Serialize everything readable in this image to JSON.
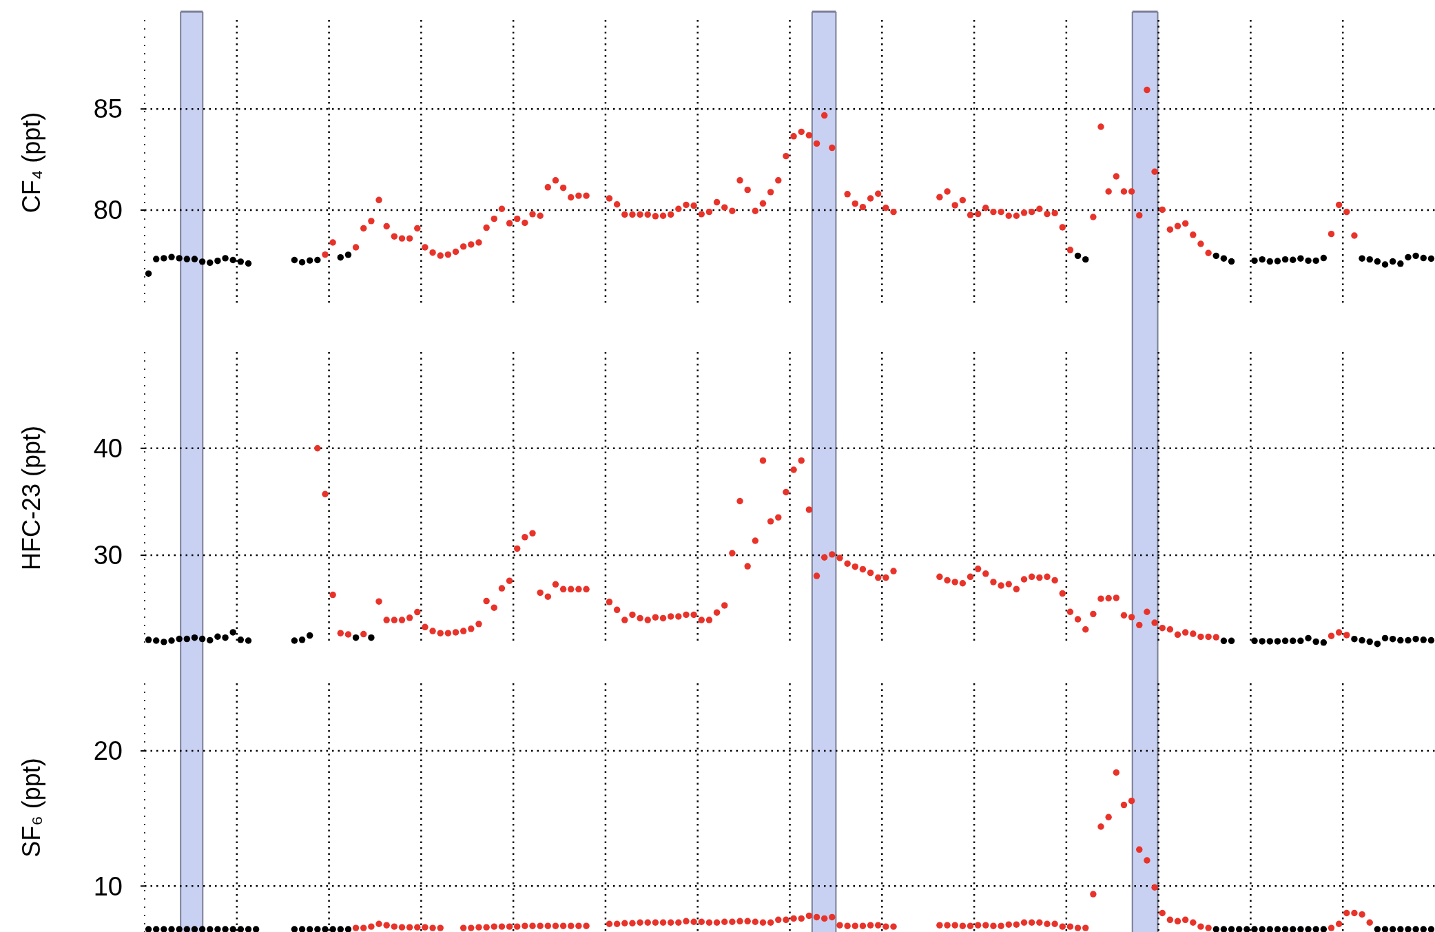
{
  "chart_data": [
    {
      "type": "scatter",
      "ylabel": "CF₄ (ppt)",
      "ylim": [
        75.3,
        89.4
      ],
      "yticks": [
        80,
        85
      ],
      "grid": true,
      "marker": "circle",
      "categories": [
        null,
        null,
        null,
        null,
        null,
        null,
        null,
        null,
        null,
        null,
        null,
        null,
        null,
        null,
        null,
        null,
        null,
        null,
        null,
        null,
        null,
        null,
        null,
        null,
        null,
        null,
        null,
        null,
        null,
        null,
        null,
        null,
        null,
        null,
        null,
        null,
        null,
        null,
        null,
        null,
        null,
        null,
        null,
        null,
        null,
        null,
        null,
        null,
        null,
        null,
        null,
        null,
        null,
        null,
        null,
        null,
        null,
        null,
        null,
        null,
        null,
        null,
        null,
        null,
        null,
        null,
        null,
        null,
        null,
        null,
        null,
        null,
        null,
        null,
        null,
        null,
        null,
        null,
        null,
        null,
        null,
        null,
        null,
        null,
        null,
        null,
        null,
        null,
        null,
        null,
        null,
        null,
        null,
        null,
        null,
        null,
        null,
        null,
        null,
        null,
        null,
        null,
        null,
        null,
        null,
        null,
        null,
        null,
        null,
        null,
        null,
        null,
        null,
        null,
        null,
        null,
        null,
        null,
        null,
        null,
        null,
        null,
        null,
        null,
        null,
        null,
        null,
        null,
        null,
        null,
        null,
        null,
        null,
        null,
        null,
        null,
        null,
        null,
        null,
        null,
        null,
        null,
        null,
        null,
        null,
        null,
        null,
        null,
        null,
        null,
        null,
        null,
        null,
        null,
        null,
        null,
        null,
        null,
        null,
        null,
        null,
        null,
        null,
        null,
        null,
        null,
        null,
        null
      ],
      "series": [
        {
          "color": "#000000",
          "values": [
            76.86,
            77.58,
            77.62,
            77.68,
            77.62,
            77.58,
            77.58,
            77.45,
            77.4,
            77.49,
            77.62,
            77.53,
            77.45,
            77.36,
            null,
            null,
            null,
            null,
            null,
            77.53,
            77.42,
            77.51,
            77.53,
            null,
            null,
            77.66,
            77.79,
            null,
            null,
            null,
            null,
            null,
            null,
            null,
            null,
            null,
            null,
            null,
            null,
            null,
            null,
            null,
            null,
            null,
            null,
            null,
            null,
            null,
            null,
            null,
            null,
            null,
            null,
            null,
            null,
            null,
            null,
            null,
            null,
            null,
            null,
            null,
            null,
            null,
            null,
            null,
            null,
            null,
            null,
            null,
            null,
            null,
            null,
            null,
            null,
            null,
            null,
            null,
            null,
            null,
            null,
            null,
            null,
            null,
            null,
            null,
            null,
            null,
            null,
            null,
            null,
            null,
            null,
            null,
            null,
            null,
            null,
            null,
            null,
            null,
            null,
            null,
            null,
            null,
            null,
            null,
            null,
            null,
            null,
            null,
            null,
            null,
            null,
            null,
            null,
            null,
            null,
            null,
            null,
            null,
            null,
            77.74,
            77.56,
            null,
            null,
            null,
            null,
            null,
            null,
            null,
            null,
            null,
            null,
            null,
            null,
            null,
            null,
            null,
            null,
            77.74,
            77.61,
            77.46,
            null,
            null,
            77.5,
            77.56,
            77.46,
            77.48,
            77.56,
            77.54,
            77.61,
            77.5,
            77.5,
            77.63,
            null,
            null,
            null,
            null,
            77.61,
            77.56,
            77.46,
            77.31,
            77.46,
            77.35,
            77.67,
            77.74,
            77.63,
            77.6
          ]
        },
        {
          "color": "#e8332a",
          "values": [
            null,
            null,
            null,
            null,
            null,
            null,
            null,
            null,
            null,
            null,
            null,
            null,
            null,
            null,
            null,
            null,
            null,
            null,
            null,
            null,
            null,
            null,
            null,
            77.8,
            78.4,
            null,
            null,
            78.16,
            79.1,
            79.46,
            80.5,
            79.2,
            78.7,
            78.6,
            78.6,
            79.1,
            78.16,
            77.9,
            77.75,
            77.8,
            77.94,
            78.2,
            78.3,
            78.4,
            79.13,
            79.57,
            80.06,
            79.35,
            79.57,
            79.37,
            79.8,
            79.72,
            81.13,
            81.47,
            81.1,
            80.63,
            80.71,
            80.71,
            null,
            null,
            80.58,
            80.28,
            79.78,
            79.78,
            79.78,
            79.78,
            79.7,
            79.72,
            79.78,
            80.06,
            80.26,
            80.22,
            79.8,
            79.91,
            80.39,
            80.13,
            79.96,
            81.47,
            81.0,
            79.96,
            80.33,
            80.89,
            81.47,
            82.67,
            83.65,
            83.87,
            83.7,
            83.29,
            84.68,
            83.08,
            null,
            80.79,
            80.32,
            80.15,
            80.58,
            80.81,
            80.11,
            79.91,
            null,
            null,
            null,
            null,
            null,
            80.64,
            80.92,
            80.24,
            80.49,
            79.76,
            79.81,
            80.11,
            79.91,
            79.91,
            79.72,
            79.72,
            79.87,
            79.91,
            80.06,
            79.81,
            79.85,
            79.15,
            78.03,
            null,
            null,
            79.66,
            84.12,
            80.92,
            81.67,
            80.92,
            80.92,
            79.74,
            85.94,
            81.9,
            80.02,
            79.04,
            79.21,
            79.34,
            78.78,
            78.33,
            77.88,
            null,
            null,
            null,
            null,
            null,
            null,
            null,
            null,
            null,
            null,
            null,
            null,
            null,
            null,
            null,
            78.82,
            80.26,
            79.91,
            78.74,
            null,
            null,
            null,
            null,
            null,
            null,
            null,
            null,
            null,
            null
          ]
        }
      ]
    },
    {
      "type": "scatter",
      "ylabel": "HFC-23 (ppt)",
      "ylim": [
        21.7,
        49
      ],
      "yticks": [
        30,
        40
      ],
      "grid": true,
      "marker": "circle",
      "categories": [
        null,
        null,
        null,
        null,
        null,
        null,
        null,
        null,
        null,
        null,
        null,
        null,
        null,
        null,
        null,
        null,
        null,
        null,
        null,
        null,
        null,
        null,
        null,
        null,
        null,
        null,
        null,
        null,
        null,
        null,
        null,
        null,
        null,
        null,
        null,
        null,
        null,
        null,
        null,
        null,
        null,
        null,
        null,
        null,
        null,
        null,
        null,
        null,
        null,
        null,
        null,
        null,
        null,
        null,
        null,
        null,
        null,
        null,
        null,
        null,
        null,
        null,
        null,
        null,
        null,
        null,
        null,
        null,
        null,
        null,
        null,
        null,
        null,
        null,
        null,
        null,
        null,
        null,
        null,
        null,
        null,
        null,
        null,
        null,
        null,
        null,
        null,
        null,
        null,
        null,
        null,
        null,
        null,
        null,
        null,
        null,
        null,
        null,
        null,
        null,
        null,
        null,
        null,
        null,
        null,
        null,
        null,
        null,
        null,
        null,
        null,
        null,
        null,
        null,
        null,
        null,
        null,
        null,
        null,
        null,
        null,
        null,
        null,
        null,
        null,
        null,
        null,
        null,
        null,
        null,
        null,
        null,
        null,
        null,
        null,
        null,
        null,
        null,
        null,
        null,
        null,
        null,
        null,
        null,
        null,
        null,
        null,
        null,
        null,
        null,
        null,
        null,
        null,
        null,
        null,
        null,
        null,
        null,
        null,
        null,
        null,
        null,
        null,
        null,
        null,
        null,
        null,
        null
      ],
      "series": [
        {
          "color": "#000000",
          "values": [
            22.1,
            22.02,
            21.9,
            22.02,
            22.18,
            22.18,
            22.3,
            22.18,
            22.06,
            22.39,
            22.3,
            22.8,
            22.1,
            22.02,
            null,
            null,
            null,
            null,
            null,
            22.02,
            22.1,
            22.5,
            null,
            null,
            null,
            null,
            null,
            22.3,
            null,
            22.3,
            null,
            null,
            null,
            null,
            null,
            null,
            null,
            null,
            null,
            null,
            null,
            null,
            null,
            null,
            null,
            null,
            null,
            null,
            null,
            null,
            null,
            null,
            null,
            null,
            null,
            null,
            null,
            null,
            null,
            null,
            null,
            null,
            null,
            null,
            null,
            null,
            null,
            null,
            null,
            null,
            null,
            null,
            null,
            null,
            null,
            null,
            null,
            null,
            null,
            null,
            null,
            null,
            null,
            null,
            null,
            null,
            null,
            null,
            null,
            null,
            null,
            null,
            null,
            null,
            null,
            null,
            null,
            null,
            null,
            null,
            null,
            null,
            null,
            null,
            null,
            null,
            null,
            null,
            null,
            null,
            null,
            null,
            null,
            null,
            null,
            null,
            null,
            null,
            null,
            null,
            null,
            null,
            null,
            null,
            null,
            null,
            null,
            null,
            null,
            null,
            null,
            null,
            null,
            null,
            null,
            null,
            null,
            null,
            null,
            null,
            22.0,
            22.0,
            null,
            null,
            22.0,
            21.96,
            21.96,
            21.96,
            22.0,
            22.0,
            22.0,
            22.25,
            21.92,
            21.84,
            null,
            null,
            null,
            22.17,
            22.05,
            21.92,
            21.72,
            22.25,
            22.17,
            22.05,
            22.05,
            22.17,
            22.1,
            22.05
          ]
        },
        {
          "color": "#e8332a",
          "values": [
            null,
            null,
            null,
            null,
            null,
            null,
            null,
            null,
            null,
            null,
            null,
            null,
            null,
            null,
            null,
            null,
            null,
            null,
            null,
            null,
            null,
            null,
            40.0,
            35.72,
            26.3,
            22.72,
            22.6,
            null,
            22.63,
            null,
            25.68,
            23.95,
            23.95,
            23.95,
            24.16,
            24.69,
            23.29,
            22.92,
            22.72,
            22.72,
            22.8,
            22.92,
            23.13,
            23.58,
            25.72,
            25.1,
            26.91,
            27.61,
            30.62,
            31.69,
            32.06,
            26.5,
            26.13,
            27.28,
            26.83,
            26.83,
            26.83,
            26.83,
            null,
            null,
            25.64,
            24.9,
            23.95,
            24.44,
            24.12,
            23.95,
            24.2,
            24.12,
            24.28,
            24.28,
            24.44,
            24.44,
            23.95,
            23.95,
            24.65,
            25.31,
            30.2,
            35.06,
            28.97,
            31.36,
            38.85,
            33.17,
            33.54,
            35.9,
            37.99,
            38.85,
            34.26,
            28.07,
            29.8,
            30.08,
            29.75,
            29.22,
            28.93,
            28.69,
            28.36,
            27.91,
            27.91,
            28.52,
            null,
            null,
            null,
            null,
            null,
            27.99,
            27.66,
            27.5,
            27.38,
            27.99,
            28.73,
            28.28,
            27.5,
            27.17,
            27.3,
            26.84,
            27.75,
            27.99,
            27.91,
            27.99,
            27.66,
            26.43,
            24.71,
            24.02,
            23.07,
            24.51,
            25.94,
            25.98,
            26.02,
            24.39,
            24.22,
            23.48,
            24.71,
            23.69,
            23.2,
            23.07,
            22.58,
            22.79,
            22.66,
            22.38,
            22.38,
            22.34,
            null,
            null,
            null,
            null,
            null,
            null,
            null,
            null,
            null,
            null,
            null,
            null,
            null,
            null,
            22.46,
            22.79,
            22.54,
            null,
            null,
            null,
            null,
            null,
            null,
            null,
            null,
            null,
            null,
            null
          ]
        }
      ]
    },
    {
      "type": "scatter",
      "ylabel": "SF₆ (ppt)",
      "ylim": [
        6.6,
        25
      ],
      "yticks": [
        10,
        20
      ],
      "grid": true,
      "marker": "circle",
      "categories": [
        null,
        null,
        null,
        null,
        null,
        null,
        null,
        null,
        null,
        null,
        null,
        null,
        null,
        null,
        null,
        null,
        null,
        null,
        null,
        null,
        null,
        null,
        null,
        null,
        null,
        null,
        null,
        null,
        null,
        null,
        null,
        null,
        null,
        null,
        null,
        null,
        null,
        null,
        null,
        null,
        null,
        null,
        null,
        null,
        null,
        null,
        null,
        null,
        null,
        null,
        null,
        null,
        null,
        null,
        null,
        null,
        null,
        null,
        null,
        null,
        null,
        null,
        null,
        null,
        null,
        null,
        null,
        null,
        null,
        null,
        null,
        null,
        null,
        null,
        null,
        null,
        null,
        null,
        null,
        null,
        null,
        null,
        null,
        null,
        null,
        null,
        null,
        null,
        null,
        null,
        null,
        null,
        null,
        null,
        null,
        null,
        null,
        null,
        null,
        null,
        null,
        null,
        null,
        null,
        null,
        null,
        null,
        null,
        null,
        null,
        null,
        null,
        null,
        null,
        null,
        null,
        null,
        null,
        null,
        null,
        null,
        null,
        null,
        null,
        null,
        null,
        null,
        null,
        null,
        null,
        null,
        null,
        null,
        null,
        null,
        null,
        null,
        null,
        null,
        null,
        null,
        null,
        null,
        null,
        null,
        null,
        null,
        null,
        null,
        null,
        null,
        null,
        null,
        null,
        null,
        null,
        null,
        null,
        null,
        null,
        null,
        null,
        null,
        null,
        null,
        null,
        null,
        null
      ],
      "series": [
        {
          "color": "#000000",
          "values": [
            6.8,
            6.8,
            6.8,
            6.8,
            6.8,
            6.8,
            6.8,
            6.8,
            6.8,
            6.8,
            6.8,
            6.8,
            6.8,
            6.8,
            6.8,
            null,
            null,
            null,
            null,
            6.8,
            6.8,
            6.8,
            6.8,
            6.8,
            6.8,
            6.8,
            6.8,
            null,
            null,
            null,
            null,
            null,
            null,
            null,
            null,
            null,
            null,
            null,
            null,
            null,
            null,
            null,
            null,
            null,
            null,
            null,
            null,
            null,
            null,
            null,
            null,
            null,
            null,
            null,
            null,
            null,
            null,
            null,
            null,
            null,
            null,
            null,
            null,
            null,
            null,
            null,
            null,
            null,
            null,
            null,
            null,
            null,
            null,
            null,
            null,
            null,
            null,
            null,
            null,
            null,
            null,
            null,
            null,
            null,
            null,
            null,
            null,
            null,
            null,
            null,
            null,
            null,
            null,
            null,
            null,
            null,
            null,
            null,
            null,
            null,
            null,
            null,
            null,
            null,
            null,
            null,
            null,
            null,
            null,
            null,
            null,
            null,
            null,
            null,
            null,
            null,
            null,
            null,
            null,
            null,
            null,
            null,
            null,
            null,
            null,
            null,
            null,
            null,
            null,
            null,
            null,
            null,
            null,
            null,
            null,
            null,
            null,
            null,
            null,
            6.8,
            6.8,
            6.8,
            6.8,
            6.8,
            6.8,
            6.8,
            6.8,
            6.8,
            6.8,
            6.8,
            6.8,
            6.8,
            6.8,
            6.8,
            null,
            null,
            null,
            null,
            null,
            null,
            6.8,
            6.8,
            6.8,
            6.8,
            6.8,
            6.8,
            6.8,
            6.8
          ]
        },
        {
          "color": "#e8332a",
          "values": [
            null,
            null,
            null,
            null,
            null,
            null,
            null,
            null,
            null,
            null,
            null,
            null,
            null,
            null,
            null,
            null,
            null,
            null,
            null,
            null,
            null,
            null,
            null,
            null,
            null,
            null,
            null,
            6.9,
            6.9,
            7.0,
            7.2,
            7.1,
            7.0,
            6.95,
            6.95,
            6.95,
            6.95,
            6.9,
            6.9,
            null,
            null,
            6.9,
            6.9,
            6.95,
            6.95,
            7.0,
            7.0,
            7.0,
            7.0,
            7.05,
            7.05,
            7.05,
            7.05,
            7.05,
            7.05,
            7.05,
            7.05,
            7.05,
            null,
            null,
            7.2,
            7.2,
            7.25,
            7.25,
            7.3,
            7.3,
            7.3,
            7.3,
            7.3,
            7.3,
            7.4,
            7.35,
            7.35,
            7.3,
            7.3,
            7.35,
            7.35,
            7.4,
            7.4,
            7.35,
            7.3,
            7.3,
            7.5,
            7.5,
            7.6,
            7.6,
            7.8,
            7.7,
            7.6,
            7.7,
            7.1,
            7.05,
            7.05,
            7.05,
            7.1,
            7.1,
            7.0,
            7.0,
            null,
            null,
            null,
            null,
            null,
            7.1,
            7.1,
            7.1,
            7.05,
            7.05,
            7.1,
            7.1,
            7.05,
            7.05,
            7.15,
            7.15,
            7.3,
            7.3,
            7.3,
            7.2,
            7.2,
            7.0,
            7.0,
            6.9,
            6.9,
            9.4,
            14.4,
            15.1,
            18.4,
            16.0,
            16.3,
            12.7,
            11.9,
            9.9,
            8.0,
            7.5,
            7.4,
            7.5,
            7.3,
            7.0,
            6.9,
            null,
            null,
            null,
            null,
            null,
            null,
            null,
            null,
            null,
            null,
            null,
            null,
            null,
            null,
            null,
            6.9,
            7.2,
            8.0,
            8.0,
            7.9,
            7.3,
            null,
            null,
            null,
            null,
            null,
            null,
            null,
            null
          ]
        }
      ]
    }
  ]
}
